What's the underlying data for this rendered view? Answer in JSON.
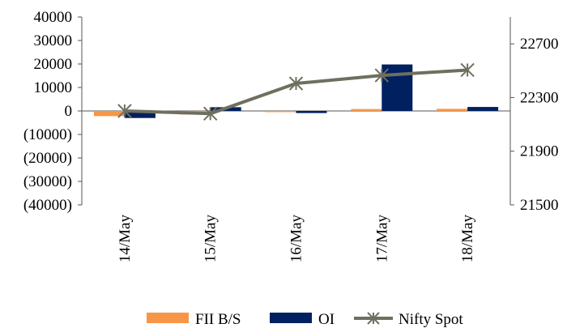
{
  "chart_data": {
    "type": "bar",
    "categories": [
      "14/May",
      "15/May",
      "16/May",
      "17/May",
      "18/May"
    ],
    "series": [
      {
        "name": "FII B/S",
        "kind": "bar",
        "axis": "left",
        "color": "#F79646",
        "values": [
          -2200,
          -1500,
          -500,
          800,
          900
        ]
      },
      {
        "name": "OI",
        "kind": "bar",
        "axis": "left",
        "color": "#002060",
        "values": [
          -3000,
          1600,
          -900,
          19800,
          1700
        ]
      },
      {
        "name": "Nifty Spot",
        "kind": "line",
        "axis": "right",
        "color": "#6F6F5F",
        "marker": "asterisk",
        "values": [
          22200,
          22180,
          22405,
          22465,
          22505
        ]
      }
    ],
    "y_left": {
      "ylim": [
        -40000,
        40000
      ],
      "ticks": [
        40000,
        30000,
        20000,
        10000,
        0,
        -10000,
        -20000,
        -30000,
        -40000
      ],
      "tick_labels": [
        "40000",
        "30000",
        "20000",
        "10000",
        "0",
        "(10000)",
        "(20000)",
        "(30000)",
        "(40000)"
      ]
    },
    "y_right": {
      "ylim": [
        21500,
        22900
      ],
      "ticks": [
        22700,
        22300,
        21900,
        21500
      ],
      "tick_labels": [
        "22700",
        "22300",
        "21900",
        "21500"
      ]
    },
    "grid": false,
    "legend_position": "bottom"
  }
}
